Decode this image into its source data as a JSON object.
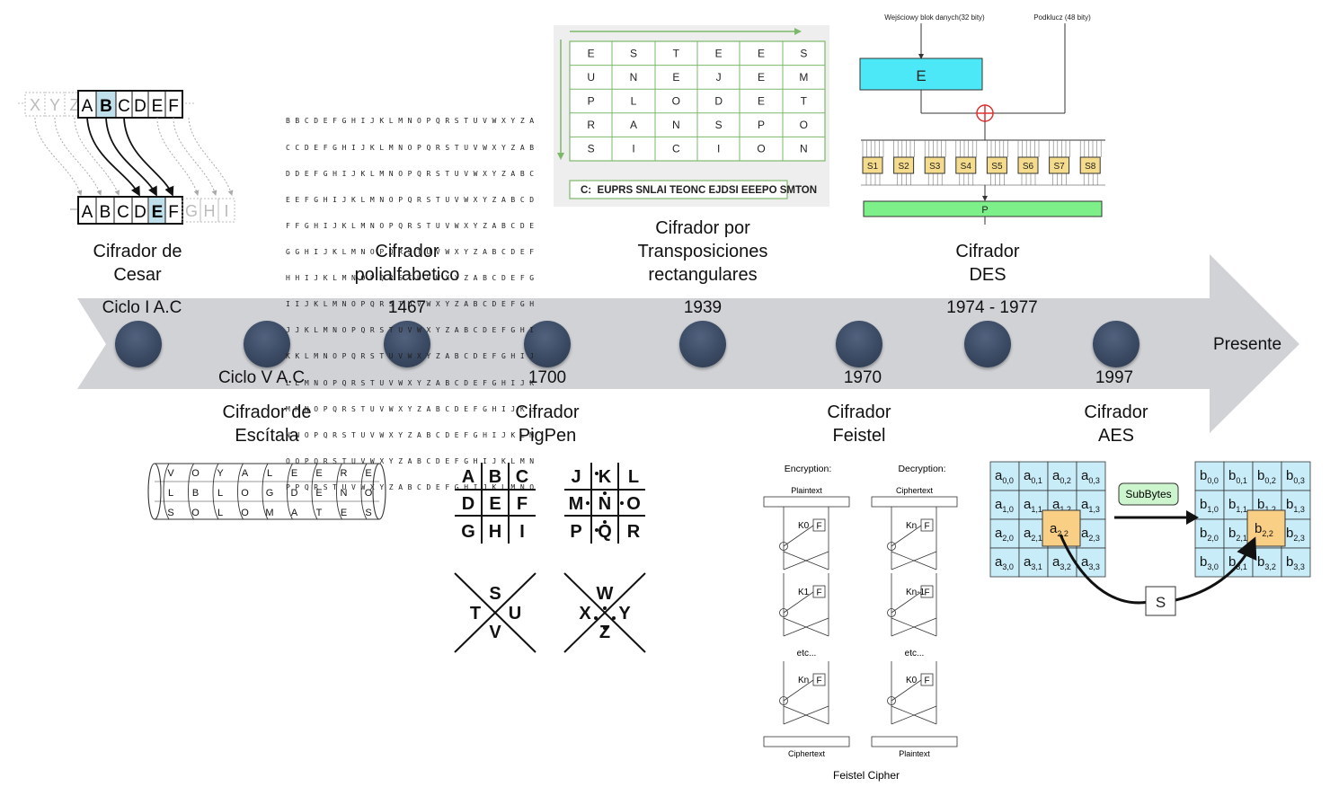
{
  "timeline": {
    "end_label": "Presente",
    "events": [
      {
        "title_lines": [
          "Cifrador de",
          "Cesar"
        ],
        "date": "Ciclo I A.C"
      },
      {
        "title_lines": [
          "Cifrador de",
          "Escítala"
        ],
        "date": "Ciclo V A.C"
      },
      {
        "title_lines": [
          "Cifrador",
          "polialfabetico"
        ],
        "date": "1467"
      },
      {
        "title_lines": [
          "Cifrador",
          "PigPen"
        ],
        "date": "1700"
      },
      {
        "title_lines": [
          "Cifrador por",
          "Transposiciones",
          "rectangulares"
        ],
        "date": "1939"
      },
      {
        "title_lines": [
          "Cifrador",
          "Feistel"
        ],
        "date": "1970"
      },
      {
        "title_lines": [
          "Cifrador",
          "DES"
        ],
        "date": "1974 - 1977"
      },
      {
        "title_lines": [
          "Cifrador",
          "AES"
        ],
        "date": "1997"
      }
    ]
  },
  "caesar": {
    "top_faded_left": [
      "X",
      "Y",
      "Z"
    ],
    "top_letters": [
      "A",
      "B",
      "C",
      "D",
      "E",
      "F"
    ],
    "top_highlight": "B",
    "bottom_faded_left": [],
    "bottom_letters": [
      "A",
      "B",
      "C",
      "D",
      "E",
      "F"
    ],
    "bottom_faded_right": [
      "G",
      "H",
      "I"
    ],
    "bottom_highlight": "E"
  },
  "vigenere": {
    "rows": [
      "B B C D E F G H I J K L M N O P Q R S T U V W X Y Z A",
      "C C D E F G H I J K L M N O P Q R S T U V W X Y Z A B",
      "D D E F G H I J K L M N O P Q R S T U V W X Y Z A B C",
      "E E F G H I J K L M N O P Q R S T U V W X Y Z A B C D",
      "F F G H I J K L M N O P Q R S T U V W X Y Z A B C D E",
      "G G H I J K L M N O P Q R S T U V W X Y Z A B C D E F",
      "H H I J K L M N O P Q R S T U V W X Y Z A B C D E F G",
      "I I J K L M N O P Q R S T U V W X Y Z A B C D E F G H",
      "J J K L M N O P Q R S T U V W X Y Z A B C D E F G H I",
      "K K L M N O P Q R S T U V W X Y Z A B C D E F G H I J",
      "L L M N O P Q R S T U V W X Y Z A B C D E F G H I J K",
      "M M N O P Q R S T U V W X Y Z A B C D E F G H I J K L",
      "N N O P Q R S T U V W X Y Z A B C D E F G H I J K L M",
      "O O P Q R S T U V W X Y Z A B C D E F G H I J K L M N",
      "P P Q R S T U V W X Y Z A B C D E F G H I J K L M N O"
    ]
  },
  "transposition": {
    "grid": [
      [
        "E",
        "S",
        "T",
        "E",
        "E",
        "S"
      ],
      [
        "U",
        "N",
        "E",
        "J",
        "E",
        "M"
      ],
      [
        "P",
        "L",
        "O",
        "D",
        "E",
        "T"
      ],
      [
        "R",
        "A",
        "N",
        "S",
        "P",
        "O"
      ],
      [
        "S",
        "I",
        "C",
        "I",
        "O",
        "N"
      ]
    ],
    "ciphertext": "C:  EUPRS SNLAI TEONC EJDSI EEEPO SMTON"
  },
  "des": {
    "input_label": "Wejściowy blok danych(32 bity)",
    "key_label": "Podklucz (48 bity)",
    "expansion": "E",
    "sboxes": [
      "S1",
      "S2",
      "S3",
      "S4",
      "S5",
      "S6",
      "S7",
      "S8"
    ],
    "permutation": "P"
  },
  "scytale": {
    "rows": [
      [
        "V",
        "O",
        "Y",
        "A",
        "L",
        "E",
        "E",
        "R",
        "E"
      ],
      [
        "L",
        "B",
        "L",
        "O",
        "G",
        "D",
        "E",
        "N",
        "O"
      ],
      [
        "S",
        "O",
        "L",
        "O",
        "M",
        "A",
        "T",
        "E",
        "S"
      ]
    ]
  },
  "pigpen": {
    "grid1": [
      "A",
      "B",
      "C",
      "D",
      "E",
      "F",
      "G",
      "H",
      "I"
    ],
    "grid2": [
      "J",
      "K",
      "L",
      "M",
      "N",
      "O",
      "P",
      "Q",
      "R"
    ],
    "x1": [
      "S",
      "T",
      "U",
      "V"
    ],
    "x2": [
      "W",
      "X",
      "Y",
      "Z"
    ]
  },
  "feistel": {
    "enc_title": "Encryption:",
    "dec_title": "Decryption:",
    "enc_in": "Plaintext",
    "enc_out": "Ciphertext",
    "dec_in": "Ciphertext",
    "dec_out": "Plaintext",
    "f": "F",
    "etc": "etc...",
    "enc_keys": [
      "K0",
      "K1",
      "Kn"
    ],
    "dec_keys": [
      "Kn",
      "Kn-1",
      "K0"
    ],
    "caption": "Feistel Cipher"
  },
  "aes": {
    "sub_label": "SubBytes",
    "s_label": "S"
  },
  "colors": {
    "arrow": "#d0d2d6",
    "node": "#3b4a63",
    "caesar_highlight": "#bfe0ea",
    "des_expansion": "#4de8f7",
    "des_sbox": "#f5dc8c",
    "des_perm": "#7ef08a",
    "aes_cell": "#c9ecf9",
    "aes_highlight": "#f9cf85",
    "sub_button": "#cdf5cd",
    "transposition_bg": "#eeeeee",
    "transposition_grid": "#7cb86a"
  }
}
